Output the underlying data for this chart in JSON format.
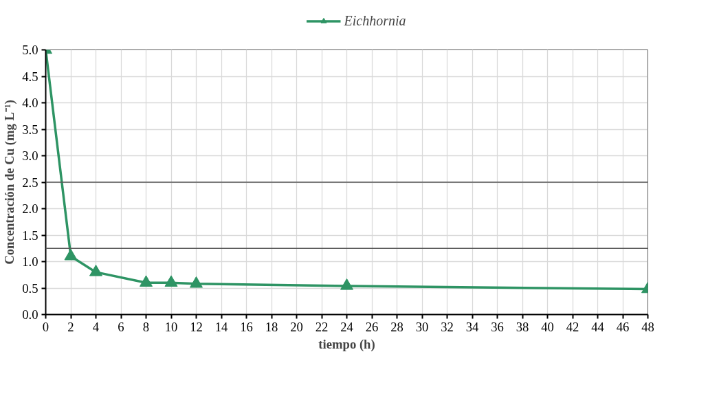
{
  "chart_data": {
    "type": "line",
    "xlabel": "tiempo (h)",
    "ylabel": "Concentración de Cu (mg L⁻¹)",
    "series": [
      {
        "name": "Eichhornia",
        "color": "#2e9464",
        "x": [
          0,
          2,
          4,
          8,
          10,
          12,
          24,
          48
        ],
        "values": [
          5.0,
          1.1,
          0.8,
          0.6,
          0.6,
          0.58,
          0.54,
          0.48
        ]
      }
    ],
    "xlim": [
      0,
      48
    ],
    "xticks": [
      0,
      2,
      4,
      6,
      8,
      10,
      12,
      14,
      16,
      18,
      20,
      22,
      24,
      26,
      28,
      30,
      32,
      34,
      36,
      38,
      40,
      42,
      44,
      46,
      48
    ],
    "ylim": [
      0,
      5
    ],
    "yticks": [
      {
        "value": 0,
        "label": "0.0"
      },
      0.5,
      {
        "value": 1,
        "label": "1.0"
      },
      1.5,
      {
        "value": 2,
        "label": "2.0"
      },
      2.5,
      {
        "value": 3,
        "label": "3.0"
      },
      3.5,
      {
        "value": 4,
        "label": "4.0"
      },
      4.5,
      {
        "value": 5,
        "label": "5.0"
      }
    ],
    "ref_lines": [
      {
        "axis": "y",
        "value": 2.5,
        "color": "#595959"
      },
      {
        "axis": "y",
        "value": 1.25,
        "color": "#595959"
      }
    ],
    "grid": true,
    "legend": "top",
    "marker": "triangle",
    "line_style": "solid"
  }
}
